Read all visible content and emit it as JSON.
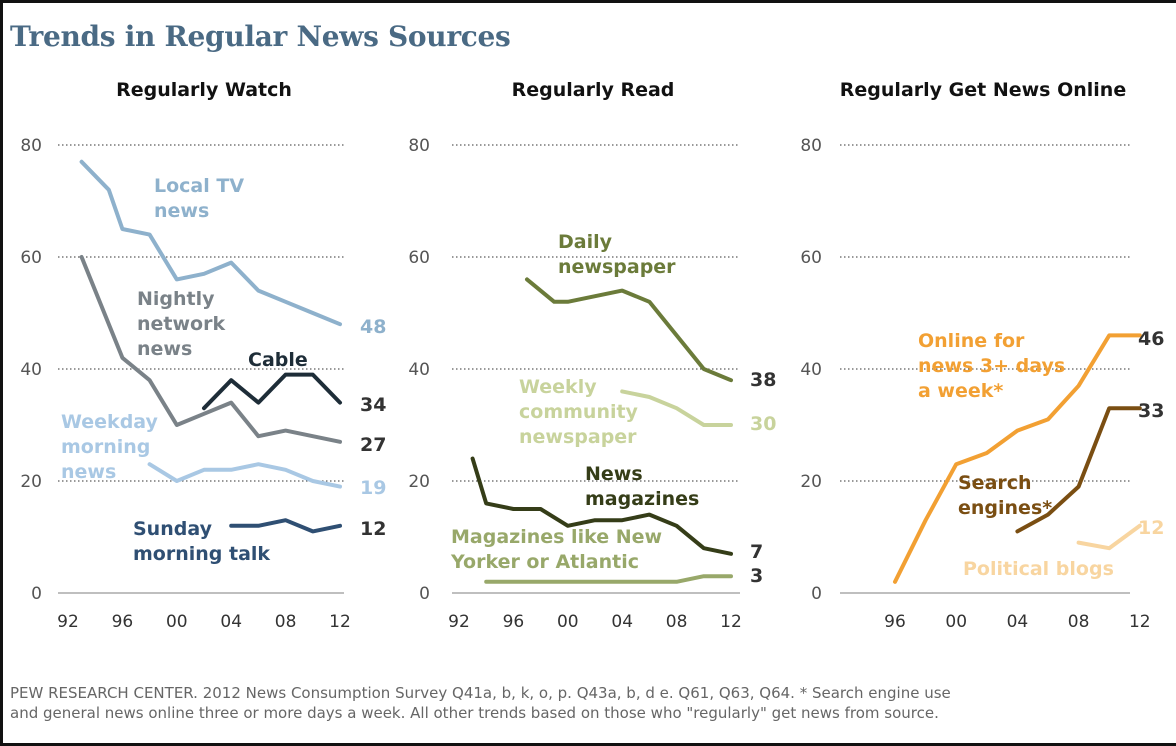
{
  "title": "Trends in Regular News Sources",
  "footnote": {
    "line1": "PEW RESEARCH CENTER. 2012 News Consumption Survey Q41a, b, k, o, p. Q43a, b, d e. Q61, Q63, Q64. * Search engine use",
    "line2": "and general news online three or more days a week. All other trends based on those who \"regularly\" get news from source."
  },
  "chart_data": [
    {
      "type": "line",
      "title": "Regularly Watch",
      "ylim": [
        0,
        80
      ],
      "yticks": [
        "0",
        "20",
        "40",
        "60",
        "80"
      ],
      "xticks": [
        "92",
        "96",
        "00",
        "04",
        "08",
        "12"
      ],
      "grid": true,
      "series": [
        {
          "name": "Local TV news",
          "label_lines": [
            "Local TV",
            "news"
          ],
          "color": "#8eb1cc",
          "x": [
            1993,
            1995,
            1996,
            1998,
            2000,
            2002,
            2004,
            2006,
            2008,
            2010,
            2012
          ],
          "y": [
            77,
            72,
            65,
            64,
            56,
            57,
            59,
            54,
            52,
            50,
            48
          ],
          "end_label": "48"
        },
        {
          "name": "Nightly network news",
          "label_lines": [
            "Nightly",
            "network",
            "news"
          ],
          "color": "#7a8288",
          "x": [
            1993,
            1996,
            1998,
            2000,
            2002,
            2004,
            2006,
            2008,
            2010,
            2012
          ],
          "y": [
            60,
            42,
            38,
            30,
            32,
            34,
            28,
            29,
            28,
            27
          ],
          "end_label": "27"
        },
        {
          "name": "Cable",
          "label_lines": [
            "Cable"
          ],
          "color": "#1e2d38",
          "x": [
            2002,
            2004,
            2006,
            2008,
            2010,
            2012
          ],
          "y": [
            33,
            38,
            34,
            39,
            39,
            34
          ],
          "end_label": "34"
        },
        {
          "name": "Weekday morning news",
          "label_lines": [
            "Weekday",
            "morning",
            "news"
          ],
          "color": "#a9c8e4",
          "x": [
            1998,
            2000,
            2002,
            2004,
            2006,
            2008,
            2010,
            2012
          ],
          "y": [
            23,
            20,
            22,
            22,
            23,
            22,
            20,
            19
          ],
          "end_label": "19"
        },
        {
          "name": "Sunday morning talk",
          "label_lines": [
            "Sunday",
            "morning talk"
          ],
          "color": "#2f4f73",
          "x": [
            2004,
            2006,
            2008,
            2010,
            2012
          ],
          "y": [
            12,
            12,
            13,
            11,
            12
          ],
          "end_label": "12"
        }
      ]
    },
    {
      "type": "line",
      "title": "Regularly Read",
      "ylim": [
        0,
        80
      ],
      "yticks": [
        "0",
        "20",
        "40",
        "60",
        "80"
      ],
      "xticks": [
        "92",
        "96",
        "00",
        "04",
        "08",
        "12"
      ],
      "grid": true,
      "series": [
        {
          "name": "Daily newspaper",
          "label_lines": [
            "Daily",
            "newspaper"
          ],
          "color": "#6b7b3a",
          "x": [
            1997,
            1999,
            2000,
            2002,
            2004,
            2006,
            2008,
            2010,
            2012
          ],
          "y": [
            56,
            52,
            52,
            53,
            54,
            52,
            46,
            40,
            38
          ],
          "end_label": "38"
        },
        {
          "name": "Weekly community newspaper",
          "label_lines": [
            "Weekly",
            "community",
            "newspaper"
          ],
          "color": "#c8d39c",
          "x": [
            2004,
            2006,
            2008,
            2010,
            2012
          ],
          "y": [
            36,
            35,
            33,
            30,
            30
          ],
          "end_label": "30"
        },
        {
          "name": "News magazines",
          "label_lines": [
            "News",
            "magazines"
          ],
          "color": "#353d18",
          "x": [
            1993,
            1994,
            1996,
            1998,
            2000,
            2002,
            2004,
            2006,
            2008,
            2010,
            2012
          ],
          "y": [
            24,
            16,
            15,
            15,
            12,
            13,
            13,
            14,
            12,
            8,
            7
          ],
          "end_label": "7"
        },
        {
          "name": "Magazines like New Yorker or Atlantic",
          "label_lines": [
            "Magazines like New",
            "Yorker or Atlantic"
          ],
          "color": "#98a86a",
          "x": [
            1994,
            1996,
            1998,
            2000,
            2002,
            2004,
            2006,
            2008,
            2010,
            2012
          ],
          "y": [
            2,
            2,
            2,
            2,
            2,
            2,
            2,
            2,
            3,
            3
          ],
          "end_label": "3"
        }
      ]
    },
    {
      "type": "line",
      "title": "Regularly Get News Online",
      "ylim": [
        0,
        80
      ],
      "yticks": [
        "0",
        "20",
        "40",
        "60",
        "80"
      ],
      "xticks": [
        "96",
        "00",
        "04",
        "08",
        "12"
      ],
      "grid": true,
      "series": [
        {
          "name": "Online for news 3+ days a week*",
          "label_lines": [
            "Online for",
            "news 3+ days",
            "a week*"
          ],
          "color": "#f2a033",
          "x": [
            1996,
            1998,
            2000,
            2002,
            2004,
            2006,
            2008,
            2010,
            2012
          ],
          "y": [
            2,
            13,
            23,
            25,
            29,
            31,
            37,
            46,
            46
          ],
          "end_label": "46"
        },
        {
          "name": "Search engines*",
          "label_lines": [
            "Search",
            "engines*"
          ],
          "color": "#7a4e12",
          "x": [
            2004,
            2006,
            2008,
            2010,
            2012
          ],
          "y": [
            11,
            14,
            19,
            33,
            33
          ],
          "end_label": "33"
        },
        {
          "name": "Political blogs",
          "label_lines": [
            "Political blogs"
          ],
          "color": "#f8d5a0",
          "x": [
            2008,
            2010,
            2012
          ],
          "y": [
            9,
            8,
            12
          ],
          "end_label": "12"
        }
      ]
    }
  ]
}
